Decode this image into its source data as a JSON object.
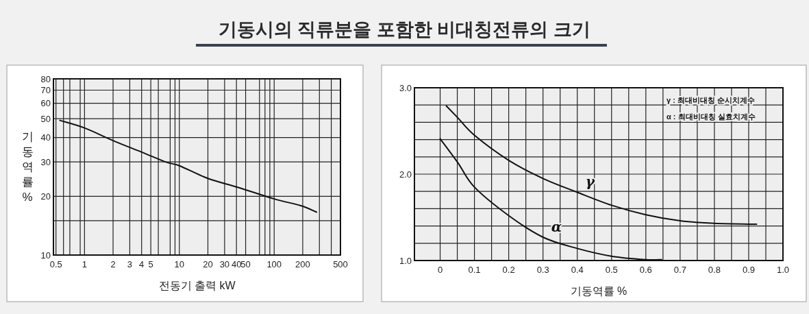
{
  "chart_data": [
    {
      "type": "line",
      "title": "기동시의 직류분을 포함한 비대칭전류의 크기",
      "xlabel": "전동기 출력 kW",
      "ylabel": "기동역률 %",
      "log": "xy",
      "grid": true,
      "marker": "none",
      "line_style": "solid",
      "xlim": [
        0.47,
        500
      ],
      "ylim": [
        10,
        80
      ],
      "xticks": [
        0.5,
        {
          "value": 0.6,
          "label": null
        },
        {
          "value": 0.7,
          "label": null
        },
        {
          "value": 0.9,
          "label": null
        },
        1,
        2,
        3,
        4,
        5,
        {
          "value": 6,
          "label": null
        },
        {
          "value": 8,
          "label": null
        },
        {
          "value": 9,
          "label": null
        },
        10,
        20,
        30,
        40,
        50,
        {
          "value": 70,
          "label": null
        },
        {
          "value": 80,
          "label": null
        },
        {
          "value": 90,
          "label": null
        },
        100,
        200,
        {
          "value": 300,
          "label": null
        },
        {
          "value": 400,
          "label": null
        },
        500
      ],
      "yticks": [
        10,
        {
          "value": 15,
          "label": null
        },
        20,
        30,
        40,
        50,
        60,
        70,
        80
      ],
      "series": [
        {
          "color": "#111111",
          "x": [
            0.55,
            1,
            2,
            4,
            7.3,
            10,
            20,
            42,
            100,
            191,
            280
          ],
          "values": [
            49,
            44.8,
            38.6,
            33.7,
            29.9,
            28.7,
            24.7,
            22.2,
            19.4,
            17.9,
            16.6
          ]
        }
      ]
    },
    {
      "type": "line",
      "xlabel": "기동역률 %",
      "grid": true,
      "marker": "none",
      "line_style": "solid",
      "xlim": [
        -0.075,
        1.0
      ],
      "ylim": [
        1.0,
        3.0
      ],
      "xticks": [
        0,
        {
          "value": 0.05,
          "label": null
        },
        0.1,
        {
          "value": 0.15,
          "label": null
        },
        0.2,
        {
          "value": 0.25,
          "label": null
        },
        0.3,
        {
          "value": 0.35,
          "label": null
        },
        0.4,
        {
          "value": 0.45,
          "label": null
        },
        0.5,
        {
          "value": 0.55,
          "label": null
        },
        0.6,
        {
          "value": 0.65,
          "label": null
        },
        0.7,
        {
          "value": 0.75,
          "label": null
        },
        0.8,
        {
          "value": 0.85,
          "label": null
        },
        0.9,
        {
          "value": 0.95,
          "label": null
        },
        {
          "value": 1.0,
          "label": "1.0"
        }
      ],
      "yticks": [
        {
          "value": 1.0,
          "label": "1.0"
        },
        {
          "value": 1.2,
          "label": null
        },
        {
          "value": 1.4,
          "label": null
        },
        {
          "value": 1.6,
          "label": null
        },
        {
          "value": 1.8,
          "label": null
        },
        {
          "value": 2.0,
          "label": "2.0"
        },
        {
          "value": 2.2,
          "label": null
        },
        {
          "value": 2.4,
          "label": null
        },
        {
          "value": 2.6,
          "label": null
        },
        {
          "value": 2.8,
          "label": null
        },
        {
          "value": 3.0,
          "label": "3.0"
        }
      ],
      "series": [
        {
          "name": "γ",
          "color": "#111111",
          "x": [
            0.018,
            0.052,
            0.1,
            0.2,
            0.3,
            0.4,
            0.5,
            0.6,
            0.7,
            0.8,
            0.923
          ],
          "values": [
            2.79,
            2.65,
            2.45,
            2.16,
            1.95,
            1.79,
            1.64,
            1.53,
            1.46,
            1.43,
            1.42
          ]
        },
        {
          "name": "α",
          "color": "#111111",
          "x": [
            0,
            0.052,
            0.1,
            0.2,
            0.3,
            0.4,
            0.5,
            0.6,
            0.646
          ],
          "values": [
            2.41,
            2.13,
            1.85,
            1.52,
            1.27,
            1.14,
            1.05,
            1.01,
            1.01
          ]
        }
      ],
      "annotations": [
        "γ : 최대비대칭 순시치계수",
        "α : 최대비대칭 실효치계수"
      ]
    }
  ]
}
